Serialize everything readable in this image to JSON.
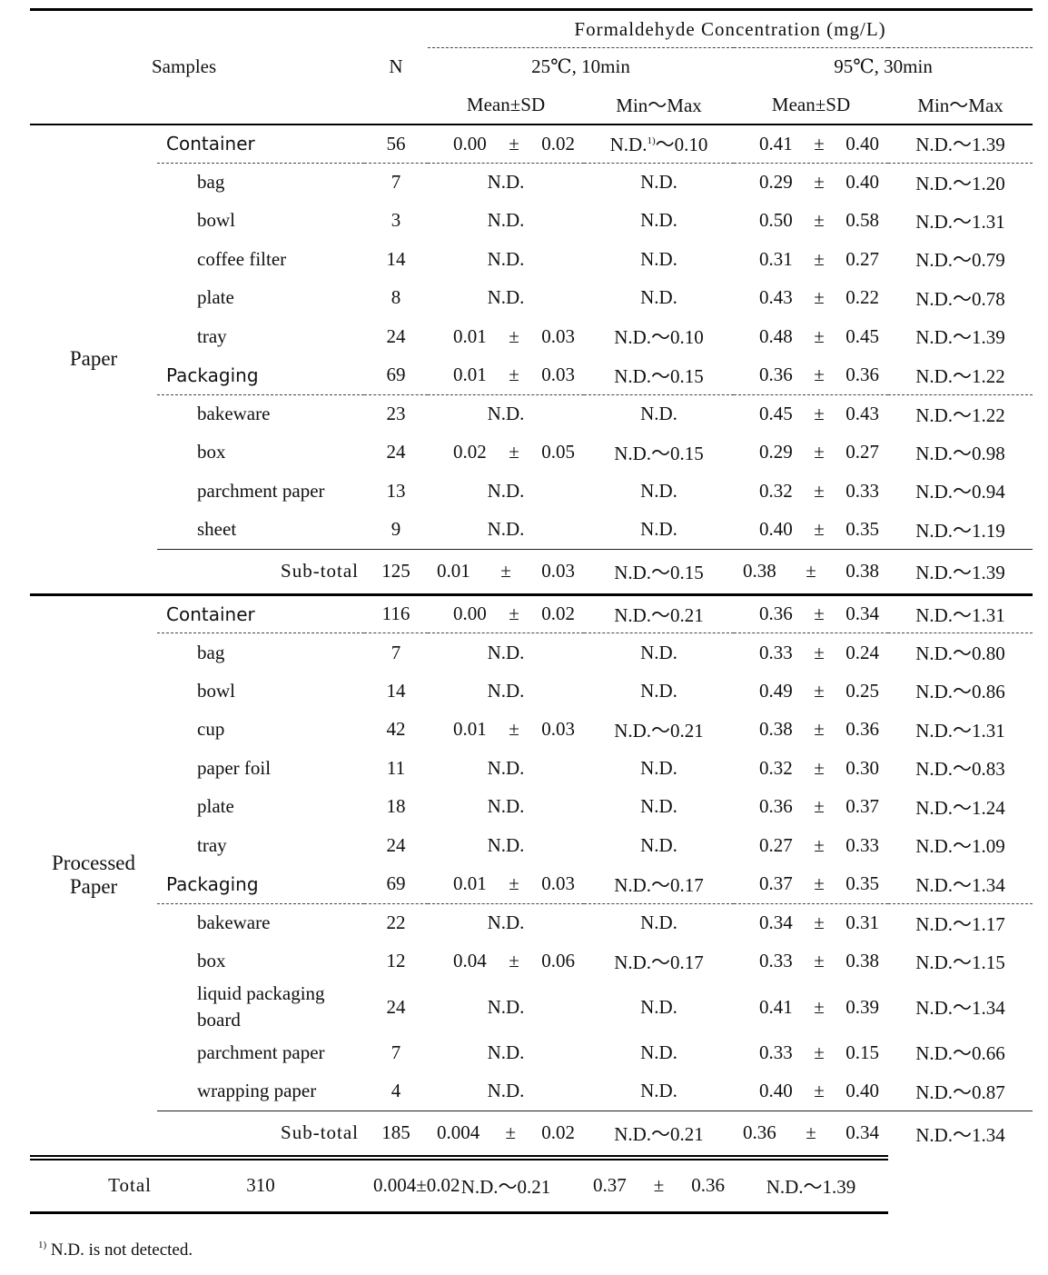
{
  "header": {
    "samples": "Samples",
    "n": "N",
    "group": "Formaldehyde Concentration (mg/L)",
    "conditions": [
      "25℃, 10min",
      "95℃, 30min"
    ],
    "subheaders": [
      "Mean±SD",
      "Min～Max",
      "Mean±SD",
      "Min～Max"
    ]
  },
  "groups": [
    {
      "label": "Paper",
      "categories": [
        {
          "name": "Container",
          "n": 56,
          "m1": [
            "0.00",
            "±",
            "0.02"
          ],
          "r1": [
            "N.D.",
            "1)",
            "～0.10"
          ],
          "m2": [
            "0.41",
            "±",
            "0.40"
          ],
          "r2": "N.D.～1.39",
          "items": [
            {
              "name": "bag",
              "n": 7,
              "m1": "N.D.",
              "r1": "N.D.",
              "m2": [
                "0.29",
                "±",
                "0.40"
              ],
              "r2": "N.D.～1.20"
            },
            {
              "name": "bowl",
              "n": 3,
              "m1": "N.D.",
              "r1": "N.D.",
              "m2": [
                "0.50",
                "±",
                "0.58"
              ],
              "r2": "N.D.～1.31"
            },
            {
              "name": "coffee filter",
              "n": 14,
              "m1": "N.D.",
              "r1": "N.D.",
              "m2": [
                "0.31",
                "±",
                "0.27"
              ],
              "r2": "N.D.～0.79"
            },
            {
              "name": "plate",
              "n": 8,
              "m1": "N.D.",
              "r1": "N.D.",
              "m2": [
                "0.43",
                "±",
                "0.22"
              ],
              "r2": "N.D.～0.78"
            },
            {
              "name": "tray",
              "n": 24,
              "m1": [
                "0.01",
                "±",
                "0.03"
              ],
              "r1": "N.D.～0.10",
              "m2": [
                "0.48",
                "±",
                "0.45"
              ],
              "r2": "N.D.～1.39"
            }
          ]
        },
        {
          "name": "Packaging",
          "n": 69,
          "m1": [
            "0.01",
            "±",
            "0.03"
          ],
          "r1": "N.D.～0.15",
          "m2": [
            "0.36",
            "±",
            "0.36"
          ],
          "r2": "N.D.～1.22",
          "items": [
            {
              "name": "bakeware",
              "n": 23,
              "m1": "N.D.",
              "r1": "N.D.",
              "m2": [
                "0.45",
                "±",
                "0.43"
              ],
              "r2": "N.D.～1.22"
            },
            {
              "name": "box",
              "n": 24,
              "m1": [
                "0.02",
                "±",
                "0.05"
              ],
              "r1": "N.D.～0.15",
              "m2": [
                "0.29",
                "±",
                "0.27"
              ],
              "r2": "N.D.～0.98"
            },
            {
              "name": "parchment paper",
              "n": 13,
              "m1": "N.D.",
              "r1": "N.D.",
              "m2": [
                "0.32",
                "±",
                "0.33"
              ],
              "r2": "N.D.～0.94"
            },
            {
              "name": "sheet",
              "n": 9,
              "m1": "N.D.",
              "r1": "N.D.",
              "m2": [
                "0.40",
                "±",
                "0.35"
              ],
              "r2": "N.D.～1.19"
            }
          ]
        }
      ],
      "subtotal": {
        "name": "Sub-total",
        "n": 125,
        "m1": [
          "0.01",
          "±",
          "0.03"
        ],
        "r1": "N.D.～0.15",
        "m2": [
          "0.38",
          "±",
          "0.38"
        ],
        "r2": "N.D.～1.39"
      }
    },
    {
      "label": "Processed Paper",
      "categories": [
        {
          "name": "Container",
          "n": 116,
          "m1": [
            "0.00",
            "±",
            "0.02"
          ],
          "r1": "N.D.～0.21",
          "m2": [
            "0.36",
            "±",
            "0.34"
          ],
          "r2": "N.D.～1.31",
          "items": [
            {
              "name": "bag",
              "n": 7,
              "m1": "N.D.",
              "r1": "N.D.",
              "m2": [
                "0.33",
                "±",
                "0.24"
              ],
              "r2": "N.D.～0.80"
            },
            {
              "name": "bowl",
              "n": 14,
              "m1": "N.D.",
              "r1": "N.D.",
              "m2": [
                "0.49",
                "±",
                "0.25"
              ],
              "r2": "N.D.～0.86"
            },
            {
              "name": "cup",
              "n": 42,
              "m1": [
                "0.01",
                "±",
                "0.03"
              ],
              "r1": "N.D.～0.21",
              "m2": [
                "0.38",
                "±",
                "0.36"
              ],
              "r2": "N.D.～1.31"
            },
            {
              "name": "paper foil",
              "n": 11,
              "m1": "N.D.",
              "r1": "N.D.",
              "m2": [
                "0.32",
                "±",
                "0.30"
              ],
              "r2": "N.D.～0.83"
            },
            {
              "name": "plate",
              "n": 18,
              "m1": "N.D.",
              "r1": "N.D.",
              "m2": [
                "0.36",
                "±",
                "0.37"
              ],
              "r2": "N.D.～1.24"
            },
            {
              "name": "tray",
              "n": 24,
              "m1": "N.D.",
              "r1": "N.D.",
              "m2": [
                "0.27",
                "±",
                "0.33"
              ],
              "r2": "N.D.～1.09"
            }
          ]
        },
        {
          "name": "Packaging",
          "n": 69,
          "m1": [
            "0.01",
            "±",
            "0.03"
          ],
          "r1": "N.D.～0.17",
          "m2": [
            "0.37",
            "±",
            "0.35"
          ],
          "r2": "N.D.～1.34",
          "items": [
            {
              "name": "bakeware",
              "n": 22,
              "m1": "N.D.",
              "r1": "N.D.",
              "m2": [
                "0.34",
                "±",
                "0.31"
              ],
              "r2": "N.D.～1.17"
            },
            {
              "name": "box",
              "n": 12,
              "m1": [
                "0.04",
                "±",
                "0.06"
              ],
              "r1": "N.D.～0.17",
              "m2": [
                "0.33",
                "±",
                "0.38"
              ],
              "r2": "N.D.～1.15"
            },
            {
              "name": "liquid packaging board",
              "n": 24,
              "m1": "N.D.",
              "r1": "N.D.",
              "m2": [
                "0.41",
                "±",
                "0.39"
              ],
              "r2": "N.D.～1.34"
            },
            {
              "name": "parchment paper",
              "n": 7,
              "m1": "N.D.",
              "r1": "N.D.",
              "m2": [
                "0.33",
                "±",
                "0.15"
              ],
              "r2": "N.D.～0.66"
            },
            {
              "name": "wrapping paper",
              "n": 4,
              "m1": "N.D.",
              "r1": "N.D.",
              "m2": [
                "0.40",
                "±",
                "0.40"
              ],
              "r2": "N.D.～0.87"
            }
          ]
        }
      ],
      "subtotal": {
        "name": "Sub-total",
        "n": 185,
        "m1": [
          "0.004",
          "±",
          "0.02"
        ],
        "r1": "N.D.～0.21",
        "m2": [
          "0.36",
          "±",
          "0.34"
        ],
        "r2": "N.D.～1.34"
      }
    }
  ],
  "total": {
    "name": "Total",
    "n": 310,
    "m1": [
      "0.004",
      "±",
      "0.02"
    ],
    "r1": "N.D.～0.21",
    "m2": [
      "0.37",
      "±",
      "0.36"
    ],
    "r2": "N.D.～1.39"
  },
  "footnote": {
    "mark": "1)",
    "text": "N.D. is not detected."
  }
}
